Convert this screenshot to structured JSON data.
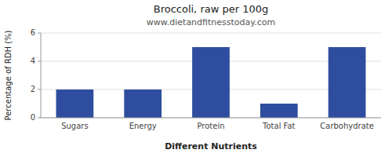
{
  "chart_data": {
    "type": "bar",
    "title": "Broccoli, raw per 100g",
    "subtitle": "www.dietandfitnesstoday.com",
    "xlabel": "Different Nutrients",
    "ylabel": "Percentage of RDH (%)",
    "categories": [
      "Sugars",
      "Energy",
      "Protein",
      "Total Fat",
      "Carbohydrate"
    ],
    "values": [
      2.0,
      2.0,
      5.0,
      1.0,
      5.0
    ],
    "color": "#2e4d9e",
    "ylim": [
      0,
      6
    ],
    "yticks": [
      0,
      2,
      4,
      6
    ],
    "grid": true
  }
}
